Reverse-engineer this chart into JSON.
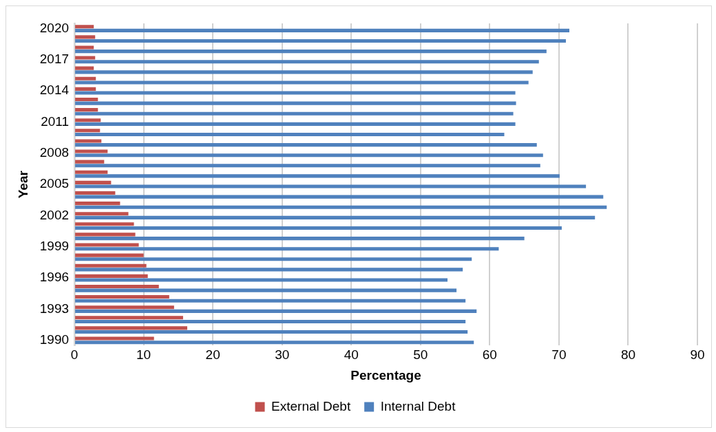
{
  "chart_data": {
    "type": "bar",
    "orientation": "horizontal",
    "xlabel": "Percentage",
    "ylabel": "Year",
    "categories": [
      "2020",
      null,
      null,
      "2017",
      null,
      null,
      "2014",
      null,
      null,
      "2011",
      null,
      null,
      "2008",
      null,
      null,
      "2005",
      null,
      null,
      "2002",
      null,
      null,
      "1999",
      null,
      null,
      "1996",
      null,
      null,
      "1993",
      null,
      null,
      "1990"
    ],
    "series": [
      {
        "name": "External Debt",
        "color": "#c0504d",
        "values": [
          2.8,
          3.0,
          2.8,
          3.0,
          2.8,
          3.1,
          3.1,
          3.4,
          3.4,
          3.8,
          3.7,
          3.9,
          4.8,
          4.3,
          4.8,
          5.3,
          5.9,
          6.6,
          7.8,
          8.6,
          8.8,
          9.3,
          10.0,
          10.4,
          10.6,
          12.2,
          13.7,
          14.4,
          15.7,
          16.3,
          11.5
        ]
      },
      {
        "name": "Internal Debt",
        "color": "#4f81bd",
        "values": [
          71.5,
          71.0,
          68.2,
          67.1,
          66.2,
          65.6,
          63.7,
          63.8,
          63.4,
          63.7,
          62.1,
          66.8,
          67.7,
          67.3,
          70.1,
          73.9,
          76.4,
          76.9,
          75.2,
          70.4,
          65.0,
          61.3,
          57.4,
          56.1,
          53.9,
          55.2,
          56.5,
          58.1,
          56.5,
          56.8,
          57.7
        ]
      }
    ],
    "xlim": [
      0,
      90
    ],
    "xticks": [
      0,
      10,
      20,
      30,
      40,
      50,
      60,
      70,
      80,
      90
    ],
    "grid": "x",
    "legend": "bottom"
  }
}
